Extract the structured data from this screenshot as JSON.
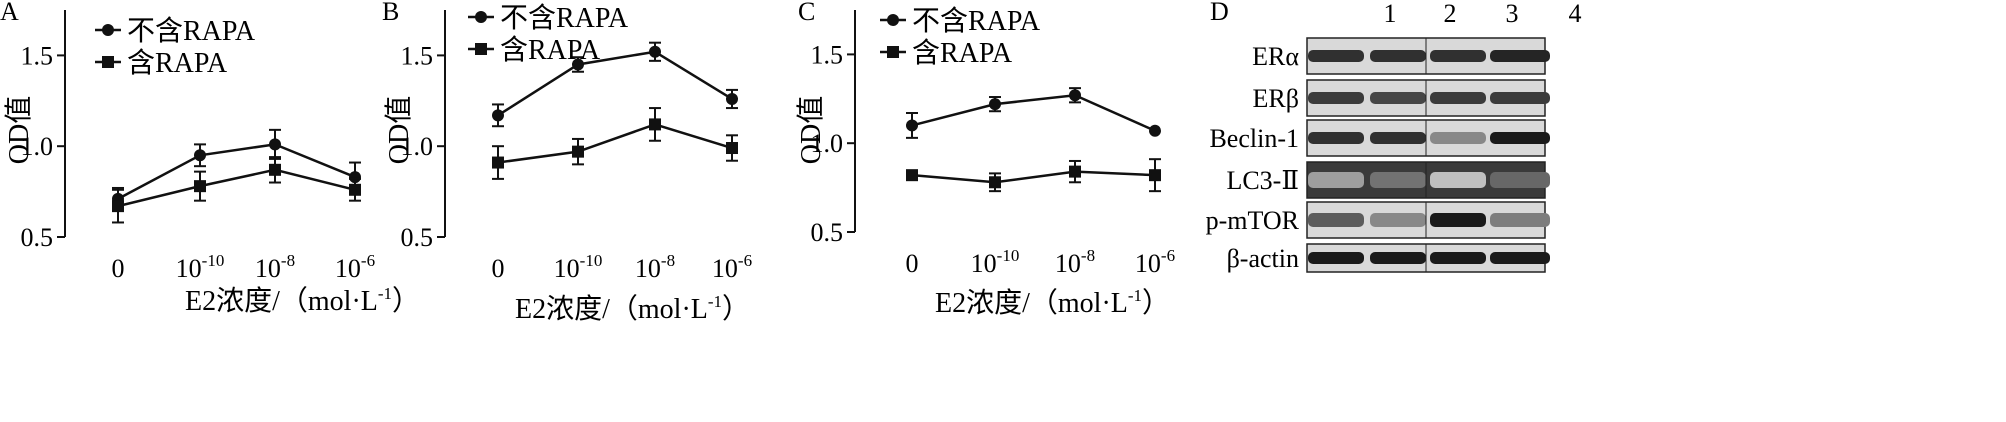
{
  "chart_data": [
    {
      "type": "line",
      "panel_label": "A",
      "categories": [
        "0",
        "10",
        "10",
        "10"
      ],
      "category_exponents": [
        "",
        "-10",
        "-8",
        "-6"
      ],
      "ylabel": "OD值",
      "xlabel": "E2浓度/（mol·L",
      "xlabel_exponent": "-1",
      "xlabel_suffix": "）",
      "ylim": [
        0.5,
        1.75
      ],
      "yticks": [
        "0.5",
        "1.0",
        "1.5"
      ],
      "ytick_values": [
        0.5,
        1.0,
        1.5
      ],
      "legend_position": "top-left",
      "series": [
        {
          "name": "不含RAPA",
          "marker": "circle",
          "values": [
            0.71,
            0.95,
            1.01,
            0.83
          ],
          "errors": [
            0.06,
            0.06,
            0.08,
            0.08
          ]
        },
        {
          "name": "含RAPA",
          "marker": "square",
          "values": [
            0.67,
            0.78,
            0.87,
            0.76
          ],
          "errors": [
            0.09,
            0.08,
            0.07,
            0.06
          ]
        }
      ]
    },
    {
      "type": "line",
      "panel_label": "B",
      "categories": [
        "0",
        "10",
        "10",
        "10"
      ],
      "category_exponents": [
        "",
        "-10",
        "-8",
        "-6"
      ],
      "ylabel": "OD值",
      "xlabel": "E2浓度/（mol·L",
      "xlabel_exponent": "-1",
      "xlabel_suffix": "）",
      "ylim": [
        0.5,
        1.75
      ],
      "yticks": [
        "0.5",
        "1.0",
        "1.5"
      ],
      "ytick_values": [
        0.5,
        1.0,
        1.5
      ],
      "legend_position": "top-left",
      "series": [
        {
          "name": "不含RAPA",
          "marker": "circle",
          "values": [
            1.17,
            1.45,
            1.52,
            1.26
          ],
          "errors": [
            0.06,
            0.04,
            0.05,
            0.05
          ]
        },
        {
          "name": "含RAPA",
          "marker": "square",
          "values": [
            0.91,
            0.97,
            1.12,
            0.99
          ],
          "errors": [
            0.09,
            0.07,
            0.09,
            0.07
          ]
        }
      ]
    },
    {
      "type": "line",
      "panel_label": "C",
      "categories": [
        "0",
        "10",
        "10",
        "10"
      ],
      "category_exponents": [
        "",
        "-10",
        "-8",
        "-6"
      ],
      "ylabel": "OD值",
      "xlabel": "E2浓度/（mol·L",
      "xlabel_exponent": "-1",
      "xlabel_suffix": "）",
      "ylim": [
        0.5,
        1.75
      ],
      "yticks": [
        "0.5",
        "1.0",
        "1.5"
      ],
      "ytick_values": [
        0.5,
        1.0,
        1.5
      ],
      "legend_position": "top-left",
      "series": [
        {
          "name": "不含RAPA",
          "marker": "circle",
          "values": [
            1.1,
            1.22,
            1.27,
            1.07
          ],
          "errors": [
            0.07,
            0.04,
            0.04,
            0.0
          ]
        },
        {
          "name": "含RAPA",
          "marker": "square",
          "values": [
            0.82,
            0.78,
            0.84,
            0.82
          ],
          "errors": [
            0.0,
            0.05,
            0.06,
            0.09
          ]
        }
      ]
    }
  ],
  "western_blot": {
    "panel_label": "D",
    "lanes": [
      "1",
      "2",
      "3",
      "4"
    ],
    "bands": [
      {
        "label": "ERα",
        "intensity": [
          0.85,
          0.85,
          0.85,
          0.9
        ]
      },
      {
        "label": "ERβ",
        "intensity": [
          0.8,
          0.75,
          0.8,
          0.8
        ]
      },
      {
        "label": "Beclin-1",
        "intensity": [
          0.85,
          0.85,
          0.45,
          0.95
        ]
      },
      {
        "label": "LC3-Ⅱ",
        "intensity": [
          0.35,
          0.55,
          0.2,
          0.6
        ]
      },
      {
        "label": "p-mTOR",
        "intensity": [
          0.65,
          0.45,
          0.95,
          0.5
        ]
      },
      {
        "label": "β-actin",
        "intensity": [
          0.95,
          0.95,
          0.95,
          0.95
        ]
      }
    ]
  }
}
